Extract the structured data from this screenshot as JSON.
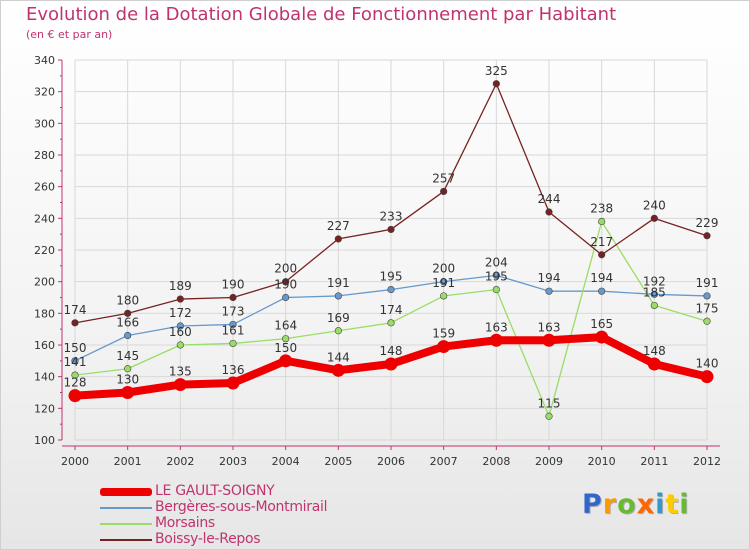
{
  "header": {
    "title": "Evolution de la Dotation Globale de Fonctionnement par Habitant",
    "subtitle": "(en € et par an)"
  },
  "colors": {
    "axis": "#c0336f",
    "grid": "#d8d8d8",
    "text": "#333333",
    "title": "#c0336f"
  },
  "chart_data": {
    "type": "line",
    "title": "Evolution de la Dotation Globale de Fonctionnement par Habitant",
    "subtitle": "(en € et par an)",
    "xlabel": "",
    "ylabel": "",
    "x": [
      "2000",
      "2001",
      "2002",
      "2003",
      "2004",
      "2005",
      "2006",
      "2007",
      "2008",
      "2009",
      "2010",
      "2011",
      "2012"
    ],
    "ylim": [
      100,
      340
    ],
    "yticks": [
      100,
      120,
      140,
      160,
      180,
      200,
      220,
      240,
      260,
      280,
      300,
      320,
      340
    ],
    "grid": true,
    "legend_position": "bottom-left",
    "series": [
      {
        "name": "LE GAULT-SOIGNY",
        "color": "#ee0000",
        "thick": true,
        "values": [
          128,
          130,
          135,
          136,
          150,
          144,
          148,
          159,
          163,
          163,
          165,
          148,
          140
        ],
        "labels": [
          "128",
          "130",
          "135",
          "136",
          "150",
          "144",
          "148",
          "159",
          "163",
          "163",
          "165",
          "148",
          "140"
        ]
      },
      {
        "name": "Bergères-sous-Montmirail",
        "color": "#6699cc",
        "thick": false,
        "values": [
          150,
          166,
          172,
          173,
          190,
          191,
          195,
          200,
          204,
          194,
          194,
          192,
          191
        ],
        "labels": [
          "150",
          "166",
          "172",
          "173",
          "190",
          "191",
          "195",
          "200",
          "204",
          "194",
          "194",
          "192",
          "191"
        ]
      },
      {
        "name": "Morsains",
        "color": "#99dd66",
        "thick": false,
        "values": [
          141,
          145,
          160,
          161,
          164,
          169,
          174,
          191,
          195,
          115,
          238,
          185,
          175
        ],
        "labels": [
          "141",
          "145",
          "160",
          "161",
          "164",
          "169",
          "174",
          "191",
          "195",
          "115",
          "238",
          "185",
          "175"
        ]
      },
      {
        "name": "Boissy-le-Repos",
        "color": "#772222",
        "thick": false,
        "values": [
          174,
          180,
          189,
          190,
          200,
          227,
          233,
          257,
          325,
          244,
          217,
          240,
          229
        ],
        "labels": [
          "174",
          "180",
          "189",
          "190",
          "200",
          "227",
          "233",
          "257",
          "325",
          "244",
          "217",
          "240",
          "229"
        ]
      }
    ]
  },
  "legend": {
    "items": [
      {
        "name": "LE GAULT-SOIGNY",
        "color": "#ee0000",
        "thick": true
      },
      {
        "name": "Bergères-sous-Montmirail",
        "color": "#6699cc",
        "thick": false
      },
      {
        "name": "Morsains",
        "color": "#99dd66",
        "thick": false
      },
      {
        "name": "Boissy-le-Repos",
        "color": "#772222",
        "thick": false
      }
    ]
  },
  "logo": {
    "letters": [
      "P",
      "r",
      "o",
      "x",
      "i",
      "t",
      "i"
    ],
    "colors": [
      "#3366cc",
      "#ff9900",
      "#66bb33",
      "#ff6600",
      "#3399cc",
      "#ffcc00",
      "#66bb33"
    ]
  }
}
